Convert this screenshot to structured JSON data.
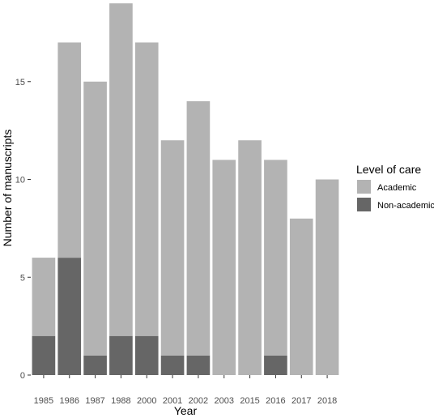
{
  "chart_data": {
    "type": "bar",
    "stacked": true,
    "categories": [
      "1985",
      "1986",
      "1987",
      "1988",
      "2000",
      "2001",
      "2002",
      "2003",
      "2015",
      "2016",
      "2017",
      "2018"
    ],
    "series": [
      {
        "name": "Non-academic",
        "values": [
          2,
          6,
          1,
          2,
          2,
          1,
          1,
          0,
          0,
          1,
          0,
          0
        ],
        "color": "#666666"
      },
      {
        "name": "Academic",
        "values": [
          4,
          11,
          14,
          17,
          15,
          11,
          13,
          11,
          12,
          10,
          8,
          10
        ],
        "color": "#b3b3b3"
      }
    ],
    "title": "",
    "xlabel": "Year",
    "ylabel": "Number of manuscripts",
    "ylim": [
      0,
      19
    ],
    "yticks": [
      0,
      5,
      10,
      15
    ],
    "grid": false,
    "legend": {
      "title": "Level of care",
      "placement": "right",
      "entries": [
        "Academic",
        "Non-academic"
      ]
    }
  }
}
